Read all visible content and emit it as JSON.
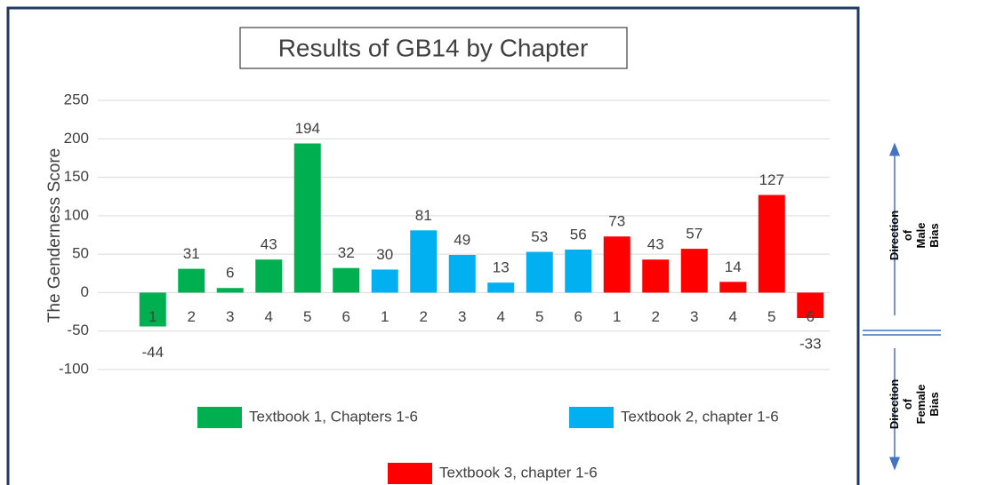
{
  "chart_data": {
    "type": "bar",
    "title": "Results of GB14 by Chapter",
    "y_label": "The Genderness Score",
    "categories": [
      "1",
      "2",
      "3",
      "4",
      "5",
      "6",
      "1",
      "2",
      "3",
      "4",
      "5",
      "6",
      "1",
      "2",
      "3",
      "4",
      "5",
      "6"
    ],
    "series": [
      {
        "name": "Textbook 1, Chapters 1-6",
        "color": "#00b050",
        "values": [
          -44,
          31,
          6,
          43,
          194,
          32,
          null,
          null,
          null,
          null,
          null,
          null,
          null,
          null,
          null,
          null,
          null,
          null
        ]
      },
      {
        "name": "Textbook 2, chapter 1-6",
        "color": "#00b0f0",
        "values": [
          null,
          null,
          null,
          null,
          null,
          null,
          30,
          81,
          49,
          13,
          53,
          56,
          null,
          null,
          null,
          null,
          null,
          null
        ]
      },
      {
        "name": "Textbook 3, chapter 1-6",
        "color": "#ff0000",
        "values": [
          null,
          null,
          null,
          null,
          null,
          null,
          null,
          null,
          null,
          null,
          null,
          null,
          73,
          43,
          57,
          14,
          127,
          -33
        ]
      }
    ],
    "ylim": [
      -100,
      250
    ],
    "yticks": [
      -100,
      -50,
      0,
      50,
      100,
      150,
      200,
      250
    ],
    "grid": true,
    "annotations": [
      "Direction of Male Bias",
      "Direction of Female Bias"
    ]
  }
}
